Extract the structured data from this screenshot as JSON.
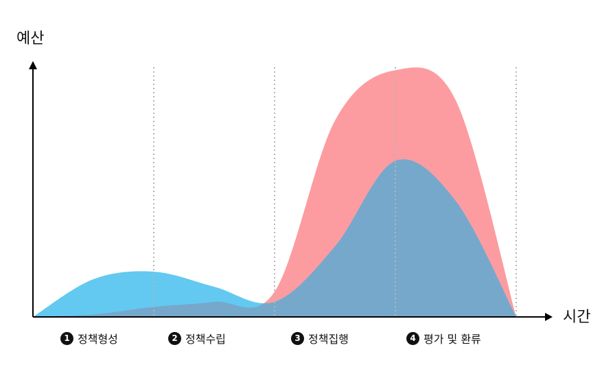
{
  "chart_data": {
    "type": "area",
    "title": "",
    "ylabel": "예산",
    "xlabel": "시간",
    "x": [
      0,
      0.5,
      1,
      1.5,
      2,
      2.5,
      3,
      3.5,
      4
    ],
    "xlim": [
      0,
      4
    ],
    "ylim": [
      0,
      1
    ],
    "grid": "vertical dotted lines at phase boundaries",
    "legend": "none",
    "phases": [
      {
        "num": "1",
        "label": "정책형성"
      },
      {
        "num": "2",
        "label": "정책수립"
      },
      {
        "num": "3",
        "label": "정책집행"
      },
      {
        "num": "4",
        "label": "평가 및 환류"
      }
    ],
    "series": [
      {
        "color": "#fc9ca0",
        "values": [
          0.0,
          0.01,
          0.04,
          0.06,
          0.1,
          0.78,
          0.98,
          0.86,
          0.0
        ]
      },
      {
        "color": "#63c9f0",
        "values": [
          0.0,
          0.15,
          0.18,
          0.12,
          0.06,
          0.28,
          0.62,
          0.46,
          0.0
        ]
      }
    ]
  },
  "colors": {
    "overlap": "#76a8cc",
    "axis": "#000000",
    "grid": "#b5b5b5"
  }
}
